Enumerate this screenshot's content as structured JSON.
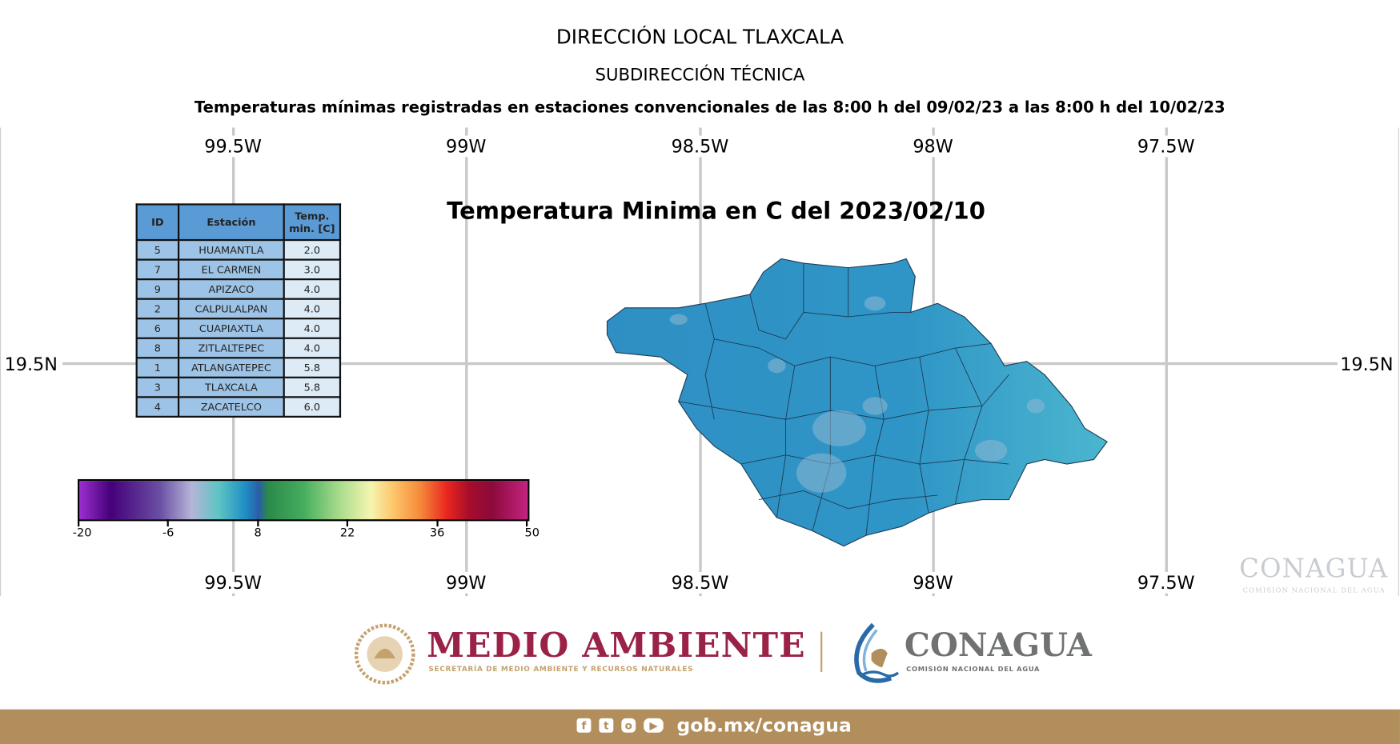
{
  "header": {
    "title": "DIRECCIÓN LOCAL TLAXCALA",
    "subtitle": "SUBDIRECCIÓN TÉCNICA",
    "description": "Temperaturas mínimas registradas en estaciones convencionales de las 8:00 h del 09/02/23 a las 8:00 h del 10/02/23"
  },
  "map": {
    "title": "Temperatura Minima en C del  2023/02/10",
    "lon_labels": [
      "99.5W",
      "99W",
      "98.5W",
      "98W",
      "97.5W"
    ],
    "lat_label": "19.5N",
    "fill_color": "#3a9fcc",
    "region": "Tlaxcala"
  },
  "table": {
    "headers": [
      "ID",
      "Estación",
      "Temp. min. [C]"
    ],
    "rows": [
      [
        "5",
        "HUAMANTLA",
        "2.0"
      ],
      [
        "7",
        "EL CARMEN",
        "3.0"
      ],
      [
        "9",
        "APIZACO",
        "4.0"
      ],
      [
        "2",
        "CALPULALPAN",
        "4.0"
      ],
      [
        "6",
        "CUAPIAXTLA",
        "4.0"
      ],
      [
        "8",
        "ZITLALTEPEC",
        "4.0"
      ],
      [
        "1",
        "ATLANGATEPEC",
        "5.8"
      ],
      [
        "3",
        "TLAXCALA",
        "5.8"
      ],
      [
        "4",
        "ZACATELCO",
        "6.0"
      ]
    ]
  },
  "colorbar": {
    "ticks": [
      "-20",
      "-6",
      "8",
      "22",
      "36",
      "50"
    ],
    "range": [
      -20,
      50
    ]
  },
  "watermark": {
    "name": "CONAGUA",
    "sub": "COMISIÓN NACIONAL DEL AGUA"
  },
  "logos": {
    "medio_ambiente": "MEDIO AMBIENTE",
    "medio_ambiente_sub": "SECRETARÍA DE MEDIO AMBIENTE Y RECURSOS NATURALES",
    "conagua": "CONAGUA",
    "conagua_sub": "COMISIÓN NACIONAL DEL AGUA"
  },
  "footer": {
    "url": "gob.mx/conagua",
    "social_icons": [
      "facebook-icon",
      "twitter-icon",
      "instagram-icon",
      "youtube-icon"
    ],
    "color": "#b38e5d"
  }
}
